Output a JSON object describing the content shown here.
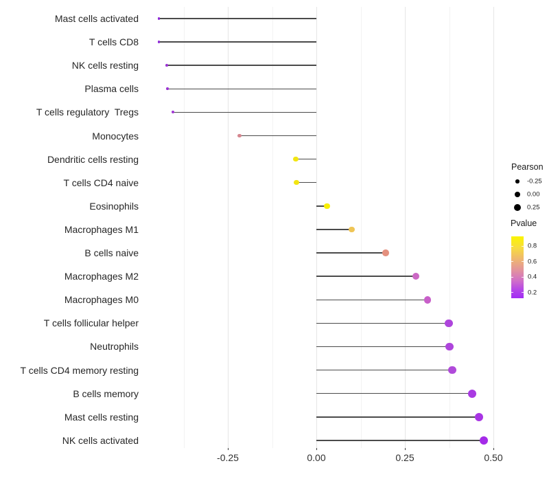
{
  "chart_data": {
    "type": "scatter",
    "variant": "lollipop",
    "title": "",
    "xlabel": "",
    "ylabel": "",
    "xlim": [
      -0.49,
      0.52
    ],
    "baseline_x": 0,
    "grid": "vertical-only",
    "x_major_ticks": {
      "labels": [
        "-0.25",
        "0.00",
        "0.25",
        "0.50"
      ],
      "values": [
        -0.25,
        0,
        0.25,
        0.5
      ]
    },
    "x_minor_gridlines": [
      -0.375,
      -0.125,
      0.125,
      0.375
    ],
    "points": [
      {
        "label": "Mast cells activated",
        "pearson": -0.445,
        "pvalue": 0.2,
        "color": "#8f2ad8"
      },
      {
        "label": "T cells CD8",
        "pearson": -0.445,
        "pvalue": 0.2,
        "color": "#8f2ad8"
      },
      {
        "label": "NK cells resting",
        "pearson": -0.423,
        "pvalue": 0.24,
        "color": "#9a33d2"
      },
      {
        "label": "Plasma cells",
        "pearson": -0.42,
        "pvalue": 0.24,
        "color": "#9a33d2"
      },
      {
        "label": "T cells regulatory  Tregs",
        "pearson": -0.405,
        "pvalue": 0.26,
        "color": "#a036d4"
      },
      {
        "label": "Monocytes",
        "pearson": -0.217,
        "pvalue": 0.55,
        "color": "#d5868f"
      },
      {
        "label": "Dendritic cells resting",
        "pearson": -0.058,
        "pvalue": 0.88,
        "color": "#f2e512"
      },
      {
        "label": "T cells CD4 naive",
        "pearson": -0.056,
        "pvalue": 0.88,
        "color": "#f2e512"
      },
      {
        "label": "Eosinophils",
        "pearson": 0.03,
        "pvalue": 0.92,
        "color": "#f8ef05"
      },
      {
        "label": "Macrophages M1",
        "pearson": 0.099,
        "pvalue": 0.75,
        "color": "#efc556"
      },
      {
        "label": "B cells naive",
        "pearson": 0.196,
        "pvalue": 0.62,
        "color": "#e4907e"
      },
      {
        "label": "Macrophages M2",
        "pearson": 0.281,
        "pvalue": 0.38,
        "color": "#cb68c4"
      },
      {
        "label": "Macrophages M0",
        "pearson": 0.314,
        "pvalue": 0.36,
        "color": "#c85fc9"
      },
      {
        "label": "T cells follicular helper",
        "pearson": 0.374,
        "pvalue": 0.3,
        "color": "#ae45dc"
      },
      {
        "label": "Neutrophils",
        "pearson": 0.376,
        "pvalue": 0.3,
        "color": "#ae45dc"
      },
      {
        "label": "T cells CD4 memory resting",
        "pearson": 0.384,
        "pvalue": 0.3,
        "color": "#b04ada"
      },
      {
        "label": "B cells memory",
        "pearson": 0.44,
        "pvalue": 0.26,
        "color": "#a93ae2"
      },
      {
        "label": "Mast cells resting",
        "pearson": 0.459,
        "pvalue": 0.25,
        "color": "#a835e4"
      },
      {
        "label": "NK cells activated",
        "pearson": 0.473,
        "pvalue": 0.22,
        "color": "#a42be8"
      }
    ],
    "legend_size": {
      "title": "Pearson",
      "dot_color": "#000000",
      "entries": [
        {
          "label": "-0.25",
          "value": -0.25
        },
        {
          "label": "0.00",
          "value": 0.0
        },
        {
          "label": "0.25",
          "value": 0.25
        }
      ]
    },
    "legend_color": {
      "title": "Pvalue",
      "ticks": [
        {
          "label": "0.8",
          "value": 0.8
        },
        {
          "label": "0.6",
          "value": 0.6
        },
        {
          "label": "0.4",
          "value": 0.4
        },
        {
          "label": "0.2",
          "value": 0.2
        }
      ],
      "gradient_stops": [
        "#fbf500 0%",
        "#f7dd3e 18%",
        "#eeb473 38%",
        "#e2929e 55%",
        "#d06fc9 72%",
        "#b445e8 87%",
        "#a12cf4 100%"
      ]
    },
    "colors": {
      "stem": "#4a4a4a",
      "grid_major": "#e5e5e5",
      "grid_minor": "#f2f2f2",
      "axis_text": "#303030"
    }
  }
}
